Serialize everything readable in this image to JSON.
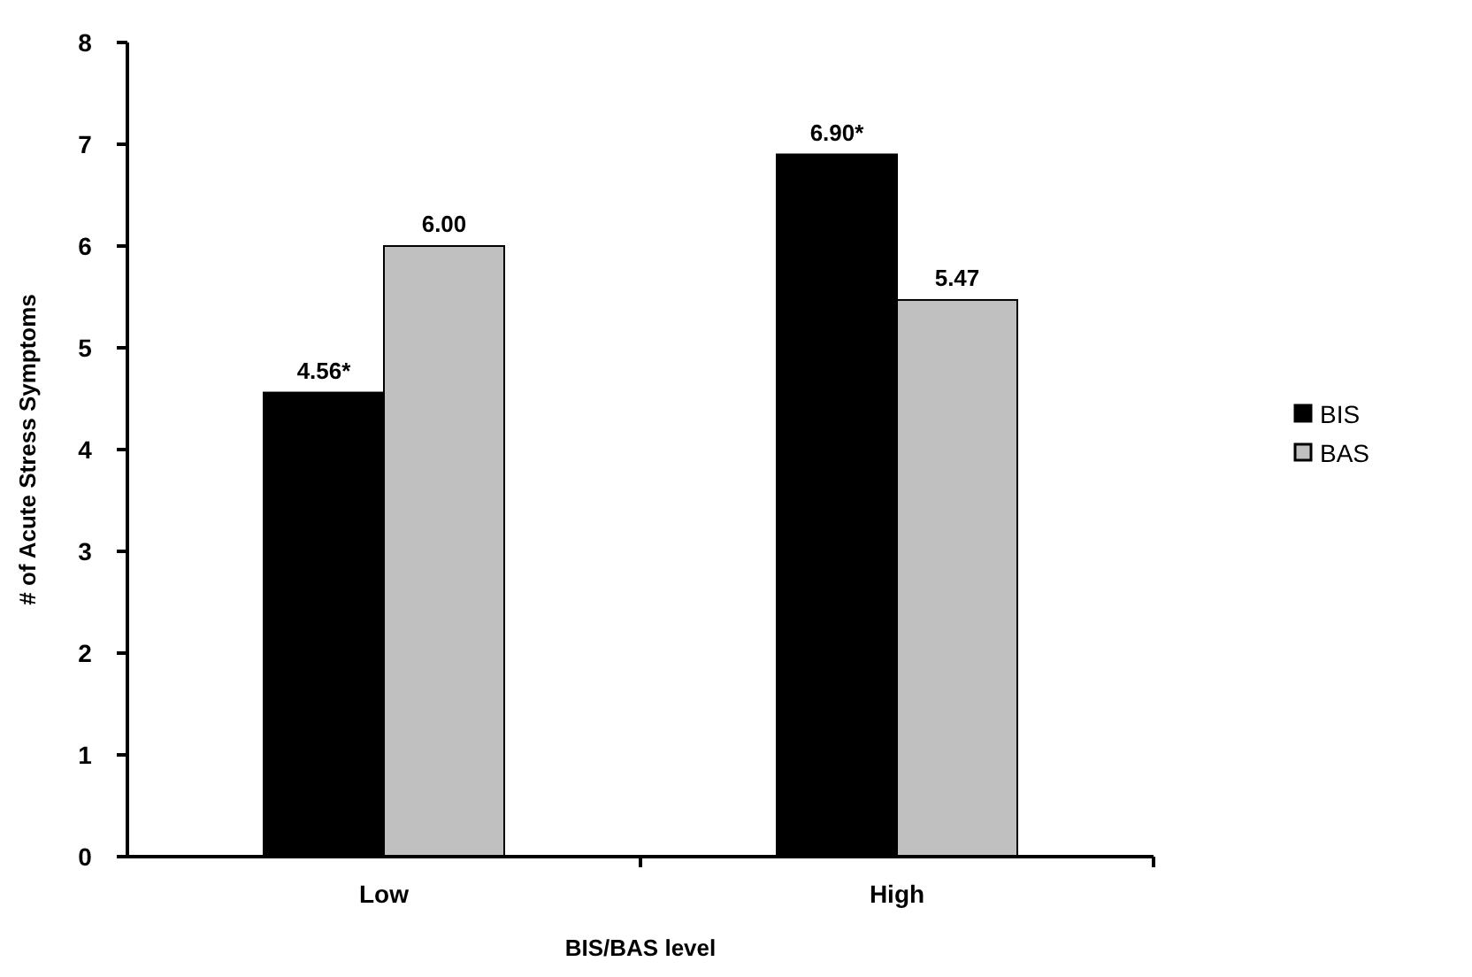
{
  "chart_data": {
    "type": "bar",
    "xlabel": "BIS/BAS level",
    "ylabel": "# of Acute Stress Symptoms",
    "categories": [
      "Low",
      "High"
    ],
    "series": [
      {
        "name": "BIS",
        "color": "#000000",
        "values": [
          4.56,
          6.9
        ],
        "value_labels": [
          "4.56*",
          "6.90*"
        ]
      },
      {
        "name": "BAS",
        "color": "#c0c0c0",
        "values": [
          6.0,
          5.47
        ],
        "value_labels": [
          "6.00",
          "5.47"
        ]
      }
    ],
    "ylim": [
      0,
      8
    ],
    "yticks": [
      0,
      1,
      2,
      3,
      4,
      5,
      6,
      7,
      8
    ],
    "grid": false,
    "legend": "right"
  }
}
